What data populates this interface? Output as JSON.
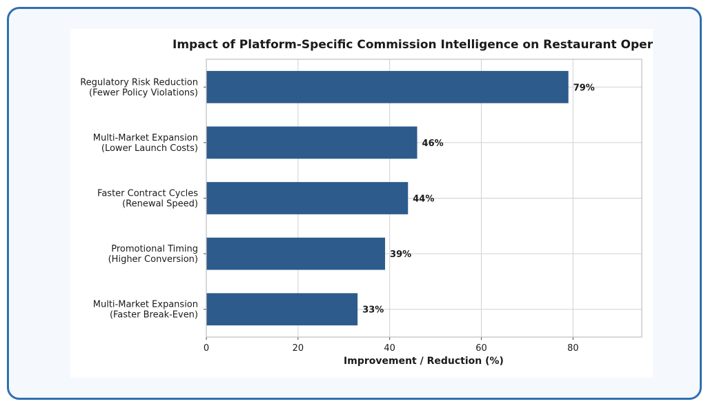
{
  "colors": {
    "bar": "#2c5b8c",
    "grid": "#d0d0d0",
    "frame": "#2f6fb0"
  },
  "chart_data": {
    "type": "bar",
    "orientation": "horizontal",
    "title": "Impact of Platform-Specific Commission Intelligence on Restaurant Operati",
    "xlabel": "Improvement / Reduction (%)",
    "ylabel": "",
    "categories": [
      [
        "Regulatory Risk Reduction",
        "(Fewer Policy Violations)"
      ],
      [
        "Multi-Market Expansion",
        "(Lower Launch Costs)"
      ],
      [
        "Faster Contract Cycles",
        "(Renewal Speed)"
      ],
      [
        "Promotional Timing",
        "(Higher Conversion)"
      ],
      [
        "Multi-Market Expansion",
        "(Faster Break-Even)"
      ]
    ],
    "values": [
      79,
      46,
      44,
      39,
      33
    ],
    "data_labels": [
      "79%",
      "46%",
      "44%",
      "39%",
      "33%"
    ],
    "xticks": [
      "0",
      "20",
      "40",
      "60",
      "80"
    ],
    "xlim": [
      0,
      95
    ],
    "grid": true
  }
}
